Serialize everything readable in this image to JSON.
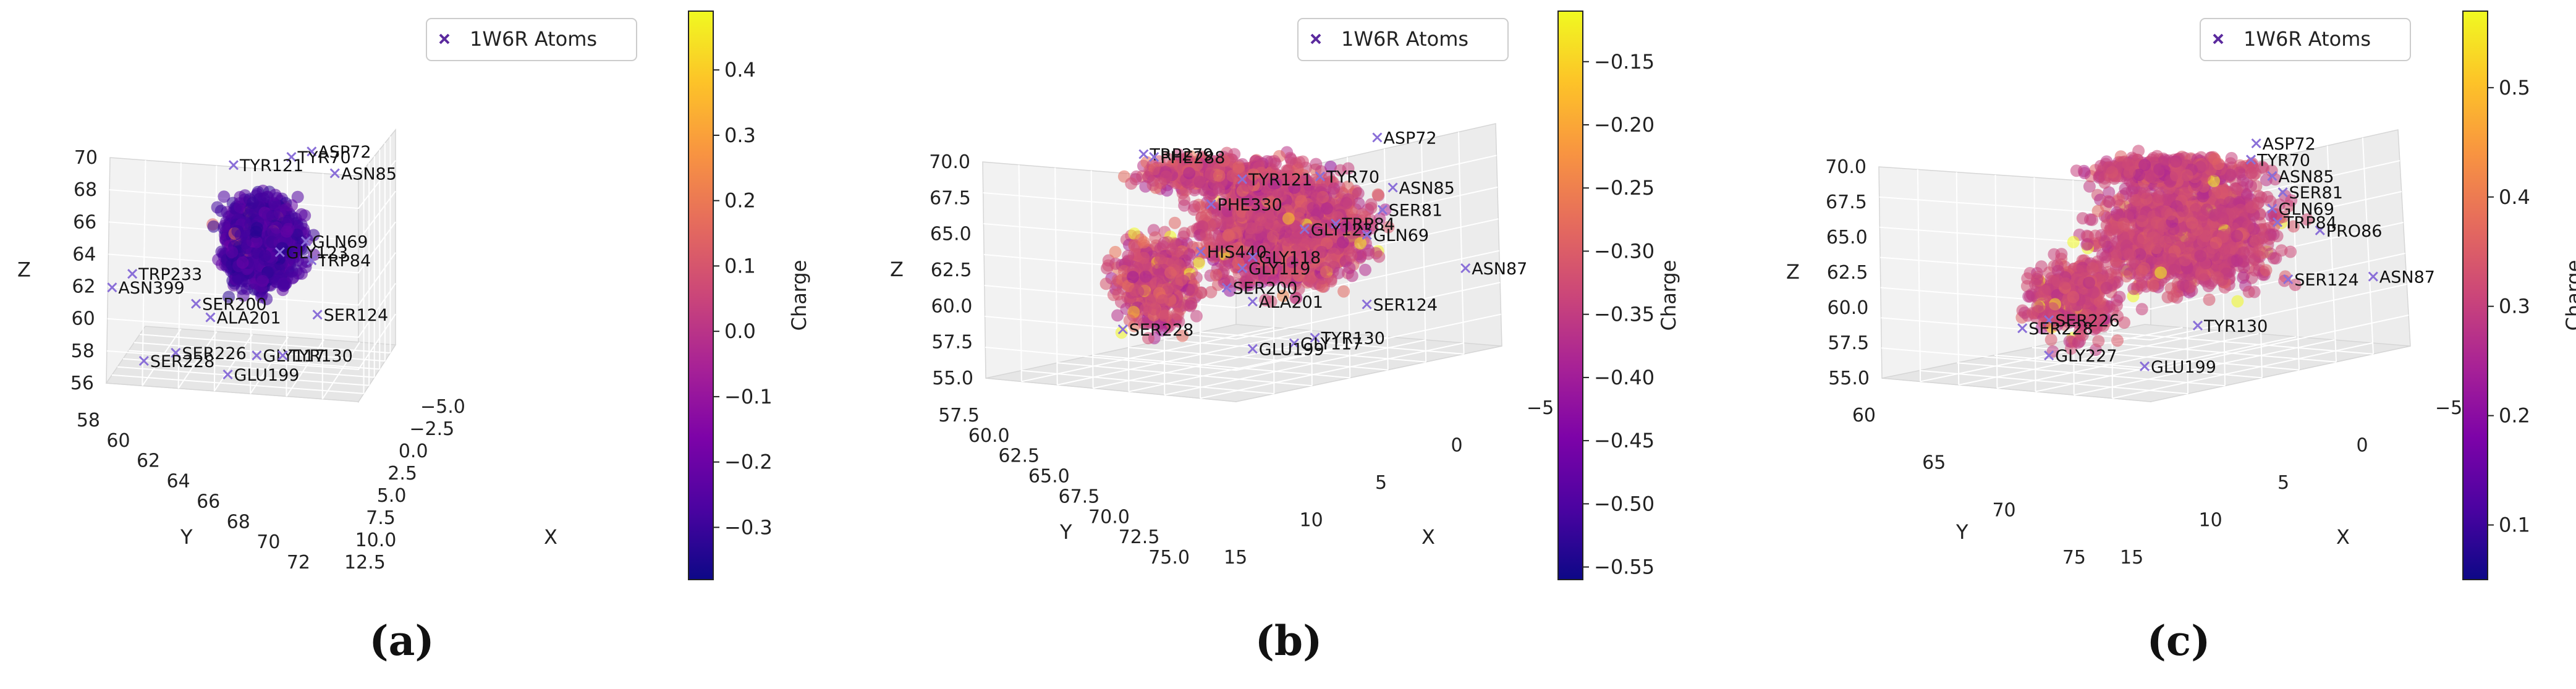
{
  "panels": [
    {
      "id": "a",
      "caption": "(a)",
      "chart_data": {
        "type": "scatter",
        "projection": "3d",
        "legend": {
          "label": "1W6R Atoms",
          "marker": "x",
          "placement": "top-right"
        },
        "colorbar": {
          "label": "Charge",
          "colormap": "plasma",
          "range": [
            -0.38,
            0.49
          ],
          "ticks": [
            "0.4",
            "0.3",
            "0.2",
            "0.1",
            "0.0",
            "−0.1",
            "−0.2",
            "−0.3"
          ],
          "tick_values": [
            0.4,
            0.3,
            0.2,
            0.1,
            0.0,
            -0.1,
            -0.2,
            -0.3
          ]
        },
        "axes": {
          "x": {
            "label": "X",
            "ticks": [
              "12.5",
              "10.0",
              "7.5",
              "5.0",
              "2.5",
              "0.0",
              "−2.5",
              "−5.0"
            ]
          },
          "y": {
            "label": "Y",
            "ticks": [
              "58",
              "60",
              "62",
              "64",
              "66",
              "68",
              "70",
              "72"
            ]
          },
          "z": {
            "label": "Z",
            "ticks": [
              "56",
              "58",
              "60",
              "62",
              "64",
              "66",
              "68",
              "70"
            ]
          }
        },
        "annotations": [
          {
            "label": "ASP72",
            "u": 0.71,
            "v": 0.92
          },
          {
            "label": "TYR70",
            "u": 0.64,
            "v": 0.9
          },
          {
            "label": "TYR121",
            "u": 0.44,
            "v": 0.87
          },
          {
            "label": "ASN85",
            "u": 0.79,
            "v": 0.84
          },
          {
            "label": "GLN69",
            "u": 0.69,
            "v": 0.59
          },
          {
            "label": "GLY123",
            "u": 0.6,
            "v": 0.55
          },
          {
            "label": "TRP84",
            "u": 0.71,
            "v": 0.52
          },
          {
            "label": "TRP233",
            "u": 0.09,
            "v": 0.47
          },
          {
            "label": "ASN399",
            "u": 0.02,
            "v": 0.42
          },
          {
            "label": "SER200",
            "u": 0.31,
            "v": 0.36
          },
          {
            "label": "ALA201",
            "u": 0.36,
            "v": 0.31
          },
          {
            "label": "SER124",
            "u": 0.73,
            "v": 0.32
          },
          {
            "label": "SER226",
            "u": 0.24,
            "v": 0.18
          },
          {
            "label": "SER228",
            "u": 0.13,
            "v": 0.15
          },
          {
            "label": "GLY117",
            "u": 0.52,
            "v": 0.17
          },
          {
            "label": "TYR130",
            "u": 0.61,
            "v": 0.17
          },
          {
            "label": "GLU199",
            "u": 0.42,
            "v": 0.1
          }
        ]
      }
    },
    {
      "id": "b",
      "caption": "(b)",
      "chart_data": {
        "type": "scatter",
        "projection": "3d",
        "legend": {
          "label": "1W6R Atoms",
          "marker": "x",
          "placement": "top-right"
        },
        "colorbar": {
          "label": "Charge",
          "colormap": "plasma",
          "range": [
            -0.56,
            -0.11
          ],
          "ticks": [
            "−0.15",
            "−0.20",
            "−0.25",
            "−0.30",
            "−0.35",
            "−0.40",
            "−0.45",
            "−0.50",
            "−0.55"
          ],
          "tick_values": [
            -0.15,
            -0.2,
            -0.25,
            -0.3,
            -0.35,
            -0.4,
            -0.45,
            -0.5,
            -0.55
          ]
        },
        "axes": {
          "x": {
            "label": "X",
            "ticks": [
              "15",
              "10",
              "5",
              "0",
              "−5"
            ]
          },
          "y": {
            "label": "Y",
            "ticks": [
              "57.5",
              "60.0",
              "62.5",
              "65.0",
              "67.5",
              "70.0",
              "72.5",
              "75.0"
            ]
          },
          "z": {
            "label": "Z",
            "ticks": [
              "55.0",
              "57.5",
              "60.0",
              "62.5",
              "65.0",
              "67.5",
              "70.0"
            ]
          }
        },
        "annotations": [
          {
            "label": "ASP72",
            "u": 0.76,
            "v": 0.95
          },
          {
            "label": "TRP279",
            "u": 0.31,
            "v": 0.89
          },
          {
            "label": "PHE288",
            "u": 0.33,
            "v": 0.88
          },
          {
            "label": "TYR121",
            "u": 0.5,
            "v": 0.8
          },
          {
            "label": "TYR70",
            "u": 0.65,
            "v": 0.81
          },
          {
            "label": "ASN85",
            "u": 0.79,
            "v": 0.77
          },
          {
            "label": "SER81",
            "u": 0.77,
            "v": 0.69
          },
          {
            "label": "PHE330",
            "u": 0.44,
            "v": 0.71
          },
          {
            "label": "TRP84",
            "u": 0.68,
            "v": 0.64
          },
          {
            "label": "GLY123",
            "u": 0.62,
            "v": 0.62
          },
          {
            "label": "GLN69",
            "u": 0.74,
            "v": 0.6
          },
          {
            "label": "HIS440",
            "u": 0.42,
            "v": 0.54
          },
          {
            "label": "GLY118",
            "u": 0.52,
            "v": 0.52
          },
          {
            "label": "GLY119",
            "u": 0.5,
            "v": 0.48
          },
          {
            "label": "ASN87",
            "u": 0.93,
            "v": 0.48
          },
          {
            "label": "SER200",
            "u": 0.47,
            "v": 0.41
          },
          {
            "label": "ALA201",
            "u": 0.52,
            "v": 0.36
          },
          {
            "label": "SER124",
            "u": 0.74,
            "v": 0.35
          },
          {
            "label": "SER228",
            "u": 0.27,
            "v": 0.26
          },
          {
            "label": "TYR130",
            "u": 0.64,
            "v": 0.23
          },
          {
            "label": "GLY117",
            "u": 0.6,
            "v": 0.21
          },
          {
            "label": "GLU199",
            "u": 0.52,
            "v": 0.19
          }
        ]
      }
    },
    {
      "id": "c",
      "caption": "(c)",
      "chart_data": {
        "type": "scatter",
        "projection": "3d",
        "legend": {
          "label": "1W6R Atoms",
          "marker": "x",
          "placement": "top-right"
        },
        "colorbar": {
          "label": "Charge",
          "colormap": "plasma",
          "range": [
            0.05,
            0.57
          ],
          "ticks": [
            "0.5",
            "0.4",
            "0.3",
            "0.2",
            "0.1"
          ],
          "tick_values": [
            0.5,
            0.4,
            0.3,
            0.2,
            0.1
          ]
        },
        "axes": {
          "x": {
            "label": "X",
            "ticks": [
              "15",
              "10",
              "5",
              "0",
              "−5"
            ]
          },
          "y": {
            "label": "Y",
            "ticks": [
              "60",
              "65",
              "70",
              "75"
            ]
          },
          "z": {
            "label": "Z",
            "ticks": [
              "55.0",
              "57.5",
              "60.0",
              "62.5",
              "65.0",
              "67.5",
              "70.0"
            ]
          }
        },
        "annotations": [
          {
            "label": "ASP72",
            "u": 0.71,
            "v": 0.95
          },
          {
            "label": "TYR70",
            "u": 0.7,
            "v": 0.89
          },
          {
            "label": "ASN85",
            "u": 0.74,
            "v": 0.83
          },
          {
            "label": "SER81",
            "u": 0.76,
            "v": 0.77
          },
          {
            "label": "GLN69",
            "u": 0.74,
            "v": 0.71
          },
          {
            "label": "PRO86",
            "u": 0.83,
            "v": 0.63
          },
          {
            "label": "TRP84",
            "u": 0.75,
            "v": 0.66
          },
          {
            "label": "ASN87",
            "u": 0.93,
            "v": 0.46
          },
          {
            "label": "SER124",
            "u": 0.77,
            "v": 0.45
          },
          {
            "label": "SER226",
            "u": 0.32,
            "v": 0.3
          },
          {
            "label": "SER228",
            "u": 0.27,
            "v": 0.27
          },
          {
            "label": "TYR130",
            "u": 0.6,
            "v": 0.28
          },
          {
            "label": "GLY227",
            "u": 0.32,
            "v": 0.17
          },
          {
            "label": "GLU199",
            "u": 0.5,
            "v": 0.13
          }
        ]
      }
    }
  ]
}
